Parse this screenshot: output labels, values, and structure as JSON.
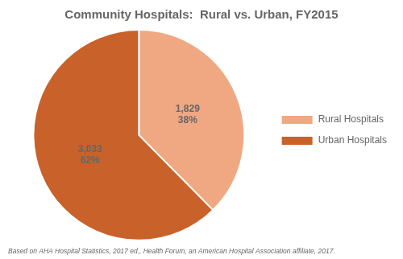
{
  "chart_data": {
    "type": "pie",
    "title": "Community Hospitals:  Rural vs. Urban, FY2015",
    "categories": [
      "Rural Hospitals",
      "Urban Hospitals"
    ],
    "values": [
      1829,
      3033
    ],
    "value_labels": [
      "1,829\n38%",
      "3,033\n62%"
    ],
    "colors": [
      "#F0A882",
      "#C8622A"
    ],
    "data_labels": true,
    "legend": "right",
    "footnote": "Based on AHA Hospital Statistics, 2017 ed., Health Forum, an American Hospital Association affiliate, 2017."
  }
}
